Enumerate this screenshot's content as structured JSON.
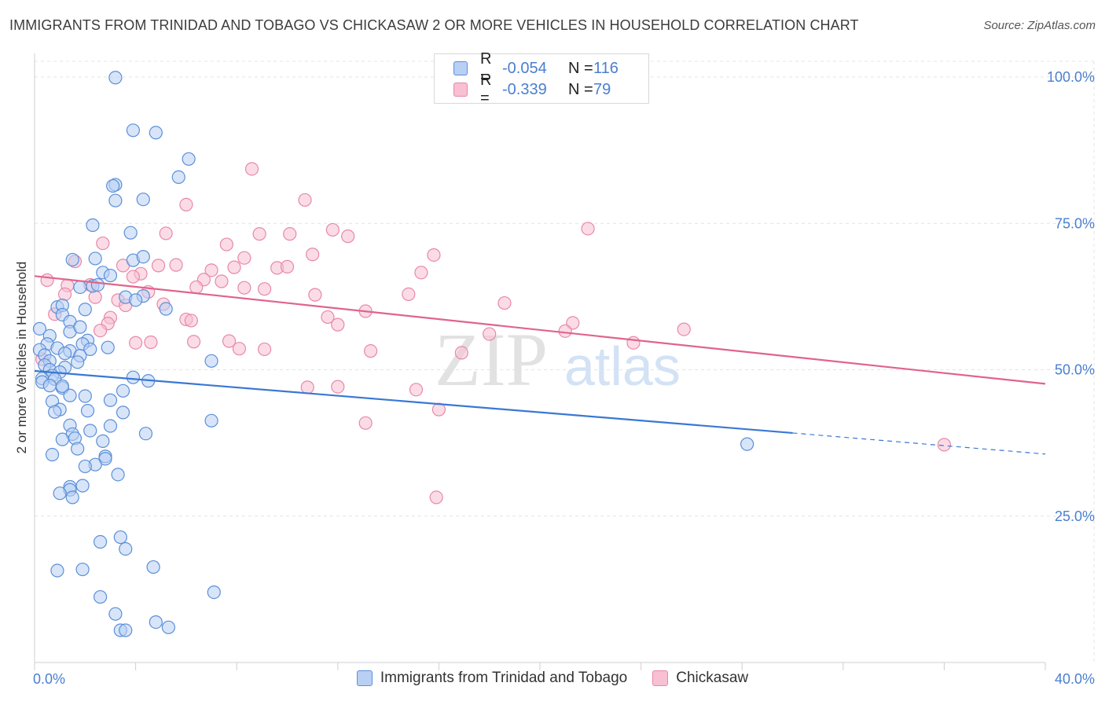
{
  "title": "IMMIGRANTS FROM TRINIDAD AND TOBAGO VS CHICKASAW 2 OR MORE VEHICLES IN HOUSEHOLD CORRELATION CHART",
  "source": "Source: ZipAtlas.com",
  "watermark": {
    "zip": "ZIP",
    "atlas": "atlas"
  },
  "legend": {
    "r_label": "R =",
    "n_label": "N =",
    "blue": {
      "r": "-0.054",
      "n": "116"
    },
    "pink": {
      "r": "-0.339",
      "n": "79"
    }
  },
  "colors": {
    "blue_fill": "#b8d0f4",
    "blue_stroke": "#5b8fd8",
    "blue_line": "#3a78d4",
    "pink_fill": "#f8c0d2",
    "pink_stroke": "#e888a8",
    "pink_line": "#e0648c",
    "axis_text": "#4a7fd0"
  },
  "chart_data": {
    "type": "scatter",
    "title": "IMMIGRANTS FROM TRINIDAD AND TOBAGO VS CHICKASAW 2 OR MORE VEHICLES IN HOUSEHOLD CORRELATION CHART",
    "xlabel": "",
    "ylabel": "2 or more Vehicles in Household",
    "xlim": [
      0,
      40
    ],
    "ylim": [
      0,
      103
    ],
    "x_tick_labels": [
      "0.0%",
      "40.0%"
    ],
    "y_ticks": [
      25,
      50,
      75,
      100
    ],
    "y_tick_labels": [
      "25.0%",
      "50.0%",
      "75.0%",
      "100.0%"
    ],
    "grid": true,
    "legend_position": "top-center",
    "series": [
      {
        "name": "Immigrants from Trinidad and Tobago",
        "color": "#5b8fd8",
        "trend": {
          "x0": 0,
          "y0": 49.8,
          "x1": 30,
          "y1": 39.2,
          "dash_to_x": 40,
          "dash_to_y": 35.6
        },
        "points": [
          [
            3.2,
            99.9
          ],
          [
            3.9,
            90.9
          ],
          [
            4.8,
            90.5
          ],
          [
            6.1,
            86.0
          ],
          [
            5.7,
            82.9
          ],
          [
            3.2,
            81.6
          ],
          [
            3.1,
            81.4
          ],
          [
            4.3,
            79.1
          ],
          [
            3.2,
            78.9
          ],
          [
            2.3,
            74.7
          ],
          [
            3.8,
            73.4
          ],
          [
            2.4,
            69.0
          ],
          [
            1.5,
            68.8
          ],
          [
            3.9,
            68.7
          ],
          [
            4.3,
            69.3
          ],
          [
            2.7,
            66.6
          ],
          [
            3.0,
            66.1
          ],
          [
            2.3,
            64.3
          ],
          [
            2.5,
            64.5
          ],
          [
            1.8,
            64.1
          ],
          [
            3.6,
            62.4
          ],
          [
            4.3,
            62.6
          ],
          [
            4.0,
            61.9
          ],
          [
            0.9,
            60.7
          ],
          [
            1.1,
            61.0
          ],
          [
            2.0,
            60.3
          ],
          [
            5.2,
            60.4
          ],
          [
            1.1,
            59.4
          ],
          [
            1.4,
            58.2
          ],
          [
            1.4,
            56.5
          ],
          [
            1.8,
            57.3
          ],
          [
            0.2,
            57.0
          ],
          [
            0.6,
            55.8
          ],
          [
            2.1,
            55.0
          ],
          [
            1.9,
            54.4
          ],
          [
            2.9,
            53.8
          ],
          [
            0.5,
            54.4
          ],
          [
            0.9,
            53.7
          ],
          [
            0.2,
            53.4
          ],
          [
            1.4,
            53.2
          ],
          [
            2.2,
            53.5
          ],
          [
            1.2,
            52.8
          ],
          [
            1.8,
            52.4
          ],
          [
            0.4,
            52.5
          ],
          [
            0.6,
            51.5
          ],
          [
            1.7,
            51.3
          ],
          [
            7.0,
            51.5
          ],
          [
            0.4,
            50.8
          ],
          [
            1.2,
            50.4
          ],
          [
            0.6,
            50.0
          ],
          [
            1.0,
            49.6
          ],
          [
            0.7,
            49.0
          ],
          [
            0.3,
            48.5
          ],
          [
            0.8,
            48.4
          ],
          [
            0.3,
            47.9
          ],
          [
            3.9,
            48.7
          ],
          [
            4.5,
            48.1
          ],
          [
            0.6,
            47.3
          ],
          [
            1.1,
            46.9
          ],
          [
            1.1,
            47.2
          ],
          [
            3.5,
            46.4
          ],
          [
            1.4,
            45.6
          ],
          [
            2.0,
            45.5
          ],
          [
            0.7,
            44.6
          ],
          [
            1.0,
            43.2
          ],
          [
            3.0,
            44.8
          ],
          [
            0.8,
            42.8
          ],
          [
            2.1,
            43.0
          ],
          [
            3.5,
            42.7
          ],
          [
            7.0,
            41.3
          ],
          [
            1.4,
            40.5
          ],
          [
            1.5,
            39.0
          ],
          [
            2.2,
            39.6
          ],
          [
            3.0,
            40.4
          ],
          [
            4.4,
            39.1
          ],
          [
            1.6,
            38.3
          ],
          [
            1.1,
            38.1
          ],
          [
            2.7,
            37.8
          ],
          [
            1.7,
            36.5
          ],
          [
            0.7,
            35.5
          ],
          [
            2.8,
            35.2
          ],
          [
            2.8,
            34.8
          ],
          [
            2.4,
            33.8
          ],
          [
            2.0,
            33.5
          ],
          [
            3.3,
            32.1
          ],
          [
            1.4,
            30.0
          ],
          [
            1.9,
            30.2
          ],
          [
            1.4,
            29.5
          ],
          [
            1.0,
            28.9
          ],
          [
            1.5,
            28.2
          ],
          [
            3.4,
            21.4
          ],
          [
            2.6,
            20.6
          ],
          [
            3.6,
            19.4
          ],
          [
            4.7,
            16.3
          ],
          [
            0.9,
            15.7
          ],
          [
            1.9,
            15.9
          ],
          [
            7.1,
            12.0
          ],
          [
            2.6,
            11.2
          ],
          [
            3.2,
            8.3
          ],
          [
            4.8,
            6.9
          ],
          [
            5.3,
            6.0
          ],
          [
            3.4,
            5.5
          ],
          [
            3.6,
            5.5
          ],
          [
            28.2,
            37.3
          ]
        ]
      },
      {
        "name": "Chickasaw",
        "color": "#e888a8",
        "trend": {
          "x0": 0,
          "y0": 66.0,
          "x1": 40,
          "y1": 47.6
        },
        "points": [
          [
            8.6,
            84.3
          ],
          [
            10.7,
            79.0
          ],
          [
            6.0,
            78.2
          ],
          [
            21.9,
            74.1
          ],
          [
            11.8,
            73.9
          ],
          [
            12.4,
            72.8
          ],
          [
            5.2,
            73.3
          ],
          [
            8.9,
            73.2
          ],
          [
            10.1,
            73.2
          ],
          [
            7.6,
            71.4
          ],
          [
            2.7,
            71.6
          ],
          [
            11.0,
            69.7
          ],
          [
            15.8,
            69.6
          ],
          [
            8.3,
            69.1
          ],
          [
            1.6,
            68.5
          ],
          [
            3.5,
            67.8
          ],
          [
            4.9,
            67.8
          ],
          [
            5.6,
            67.9
          ],
          [
            9.6,
            67.4
          ],
          [
            10.0,
            67.6
          ],
          [
            7.0,
            67.0
          ],
          [
            7.9,
            67.5
          ],
          [
            15.3,
            66.6
          ],
          [
            4.2,
            66.4
          ],
          [
            3.9,
            65.9
          ],
          [
            6.7,
            65.4
          ],
          [
            0.5,
            65.3
          ],
          [
            7.4,
            65.1
          ],
          [
            2.2,
            64.5
          ],
          [
            1.3,
            64.4
          ],
          [
            6.4,
            64.1
          ],
          [
            8.3,
            64.0
          ],
          [
            9.1,
            63.8
          ],
          [
            4.5,
            63.3
          ],
          [
            1.2,
            62.9
          ],
          [
            2.4,
            62.4
          ],
          [
            11.1,
            62.8
          ],
          [
            14.8,
            62.9
          ],
          [
            3.3,
            61.9
          ],
          [
            5.1,
            61.2
          ],
          [
            18.6,
            61.4
          ],
          [
            3.6,
            61.0
          ],
          [
            13.1,
            60.0
          ],
          [
            0.8,
            59.5
          ],
          [
            11.6,
            59.0
          ],
          [
            3.0,
            58.9
          ],
          [
            6.0,
            58.6
          ],
          [
            6.2,
            58.4
          ],
          [
            2.9,
            57.9
          ],
          [
            21.3,
            58.0
          ],
          [
            12.0,
            57.7
          ],
          [
            2.6,
            56.7
          ],
          [
            21.0,
            56.6
          ],
          [
            25.7,
            56.9
          ],
          [
            18.0,
            56.1
          ],
          [
            6.3,
            54.8
          ],
          [
            7.7,
            54.9
          ],
          [
            4.0,
            54.6
          ],
          [
            4.6,
            54.7
          ],
          [
            23.7,
            54.6
          ],
          [
            8.1,
            53.6
          ],
          [
            9.1,
            53.5
          ],
          [
            13.3,
            53.2
          ],
          [
            16.9,
            52.9
          ],
          [
            0.3,
            51.8
          ],
          [
            12.0,
            47.1
          ],
          [
            10.8,
            47.0
          ],
          [
            15.1,
            46.6
          ],
          [
            16.0,
            43.2
          ],
          [
            13.1,
            40.9
          ],
          [
            15.9,
            28.2
          ],
          [
            36.0,
            37.2
          ]
        ]
      }
    ]
  }
}
